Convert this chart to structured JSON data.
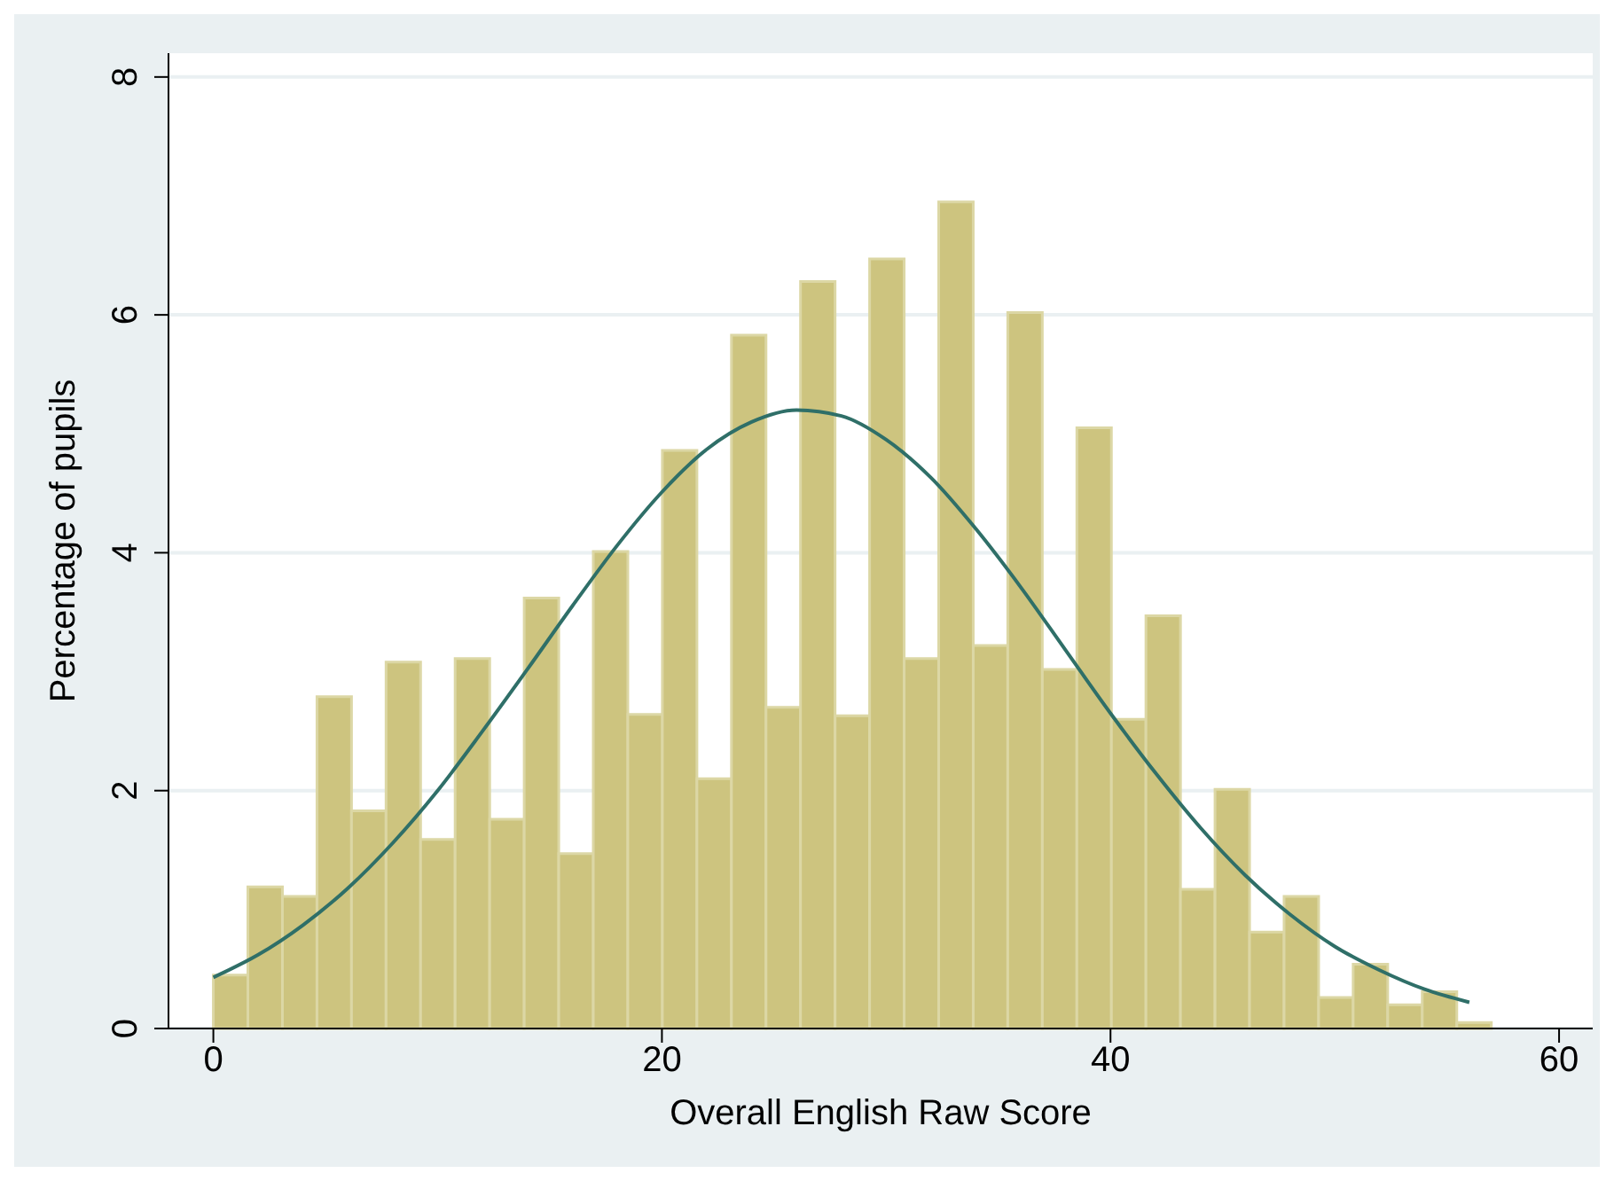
{
  "chart_data": {
    "type": "histogram",
    "xlabel": "Overall English Raw Score",
    "ylabel": "Percentage of pupils",
    "bins": [
      0,
      1.54,
      3.08,
      4.62,
      6.16,
      7.7,
      9.24,
      10.78,
      12.32,
      13.86,
      15.4,
      16.94,
      18.48,
      20.02,
      21.56,
      23.1,
      24.64,
      26.18,
      27.72,
      29.26,
      30.8,
      32.34,
      33.88,
      35.42,
      36.96,
      38.5,
      40.04,
      41.58,
      43.12,
      44.66,
      46.2,
      47.74,
      49.28,
      50.82,
      52.36,
      53.9,
      55.44,
      56.98
    ],
    "values": [
      0.45,
      1.19,
      1.11,
      2.79,
      1.83,
      3.08,
      1.59,
      3.11,
      1.76,
      3.62,
      1.47,
      4.01,
      2.64,
      4.86,
      2.1,
      5.83,
      2.7,
      6.28,
      2.63,
      6.47,
      3.11,
      6.95,
      3.22,
      6.02,
      3.02,
      5.05,
      2.6,
      3.47,
      1.17,
      2.01,
      0.81,
      1.11,
      0.26,
      0.54,
      0.2,
      0.31,
      0.05
    ],
    "color": "#cdc47f",
    "series": [
      {
        "type": "line",
        "color": "#2f6f68",
        "x": [
          0,
          2,
          4,
          6,
          8,
          10,
          12,
          14,
          16,
          18,
          20,
          22,
          24,
          26,
          28,
          30,
          32,
          34,
          36,
          38,
          40,
          42,
          44,
          46,
          48,
          50,
          52,
          54,
          56
        ],
        "values": [
          0.43,
          0.62,
          0.87,
          1.18,
          1.56,
          2.0,
          2.5,
          3.02,
          3.55,
          4.06,
          4.51,
          4.87,
          5.1,
          5.2,
          5.15,
          4.95,
          4.63,
          4.2,
          3.71,
          3.18,
          2.65,
          2.15,
          1.69,
          1.29,
          0.96,
          0.69,
          0.49,
          0.33,
          0.22
        ]
      }
    ],
    "marker": "none",
    "line_style": "solid",
    "xlim": [
      -2,
      61.5
    ],
    "xticks": [
      0,
      20,
      40,
      60
    ],
    "ylim": [
      0,
      8.2
    ],
    "yticks": [
      0,
      2,
      4,
      6,
      8
    ],
    "grid": "y"
  }
}
